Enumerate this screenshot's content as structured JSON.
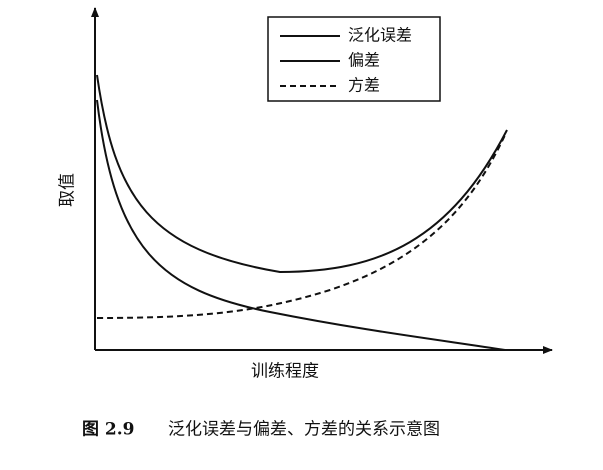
{
  "figure": {
    "y_axis_label": "取值",
    "x_axis_label": "训练程度",
    "legend": [
      "泛化误差",
      "偏差",
      "方差"
    ],
    "caption": {
      "label": "图 2.9",
      "text": "泛化误差与偏差、方差的关系示意图"
    }
  }
}
